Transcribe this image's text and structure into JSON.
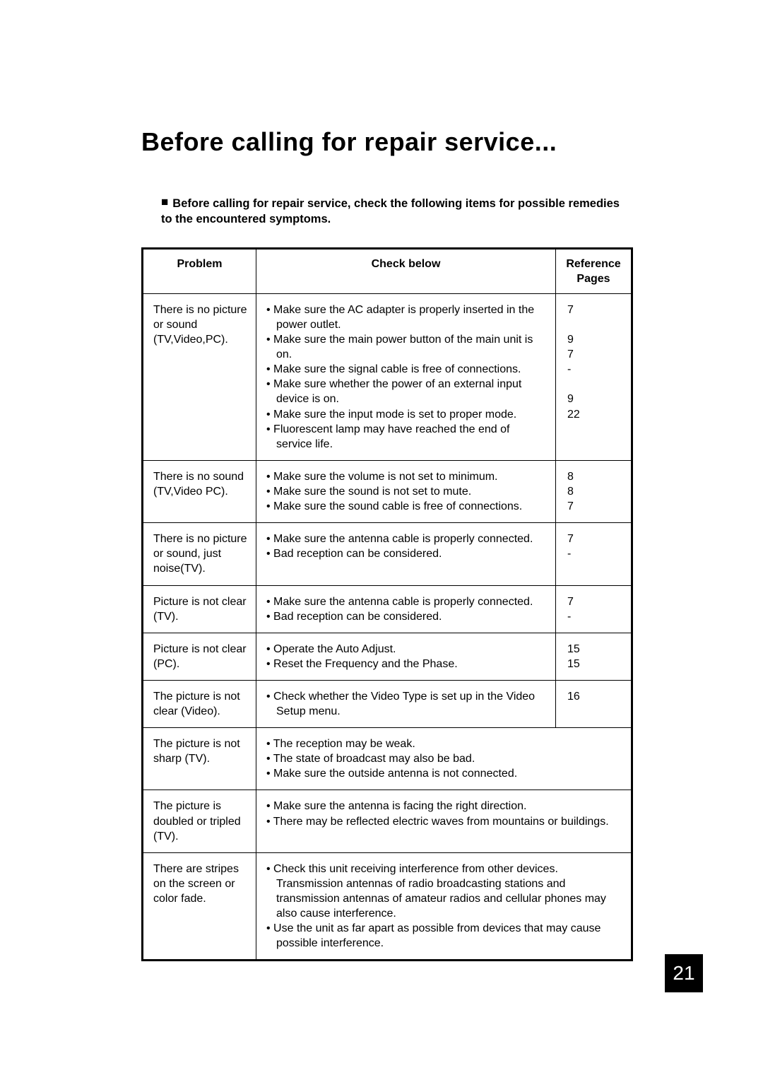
{
  "title": "Before calling for repair service...",
  "intro_marker": "■",
  "intro_text": "Before calling for repair service, check the following items for possible remedies to the encountered symptoms.",
  "headers": {
    "problem": "Problem",
    "check": "Check below",
    "pages": "Reference Pages"
  },
  "rows": [
    {
      "problem": "There is no picture or sound (TV,Video,PC).",
      "checks": [
        "Make sure the AC adapter is properly inserted in the power outlet.",
        "Make sure the main power button of the main unit is on.",
        "Make sure the signal cable is free of connections.",
        "Make sure whether the power of an external input device is on.",
        "Make sure the input mode is set to proper mode.",
        "Fluorescent lamp may have reached the end of service life."
      ],
      "pages": "7\n\n9\n7\n-\n\n9\n22",
      "merged": false
    },
    {
      "problem": "There is no sound (TV,Video PC).",
      "checks": [
        "Make sure the volume is not set to minimum.",
        "Make sure the sound is not set to mute.",
        "Make sure the sound cable is free of connections."
      ],
      "pages": "8\n8\n7",
      "merged": false
    },
    {
      "problem": "There is no picture or sound, just noise(TV).",
      "checks": [
        "Make sure the antenna cable is properly connected.",
        "Bad reception can be considered."
      ],
      "pages": "7\n-",
      "merged": false
    },
    {
      "problem": "Picture is not clear (TV).",
      "checks": [
        "Make sure the antenna cable is properly connected.",
        "Bad reception can be considered."
      ],
      "pages": "7\n-",
      "merged": false
    },
    {
      "problem": "Picture is not clear (PC).",
      "checks": [
        "Operate the Auto Adjust.",
        "Reset the Frequency and the Phase."
      ],
      "pages": "15\n15",
      "merged": false
    },
    {
      "problem": "The picture is not clear (Video).",
      "checks": [
        "Check whether the Video Type is set up in the Video Setup menu."
      ],
      "pages": "16",
      "merged": false
    },
    {
      "problem": "The picture is not sharp (TV).",
      "checks": [
        "The reception may be weak.",
        "The state of broadcast may also be bad.",
        "Make sure the outside antenna is not connected."
      ],
      "pages": "",
      "merged": true
    },
    {
      "problem": "The picture is doubled or tripled (TV).",
      "checks": [
        "Make sure the antenna is facing the right direction.",
        "There may be reflected electric waves from mountains or buildings."
      ],
      "pages": "",
      "merged": true
    },
    {
      "problem": "There are stripes on the screen or color fade.",
      "checks": [
        "Check this unit receiving interference from other devices. Transmission antennas of radio broadcasting stations and transmission antennas of amateur radios and cellular phones may also cause interference.",
        "Use the unit as far apart as possible from devices that may cause possible interference."
      ],
      "pages": "",
      "merged": true
    }
  ],
  "page_number": "21",
  "colors": {
    "text": "#000000",
    "background": "#ffffff",
    "pageno_bg": "#000000",
    "pageno_fg": "#ffffff"
  }
}
